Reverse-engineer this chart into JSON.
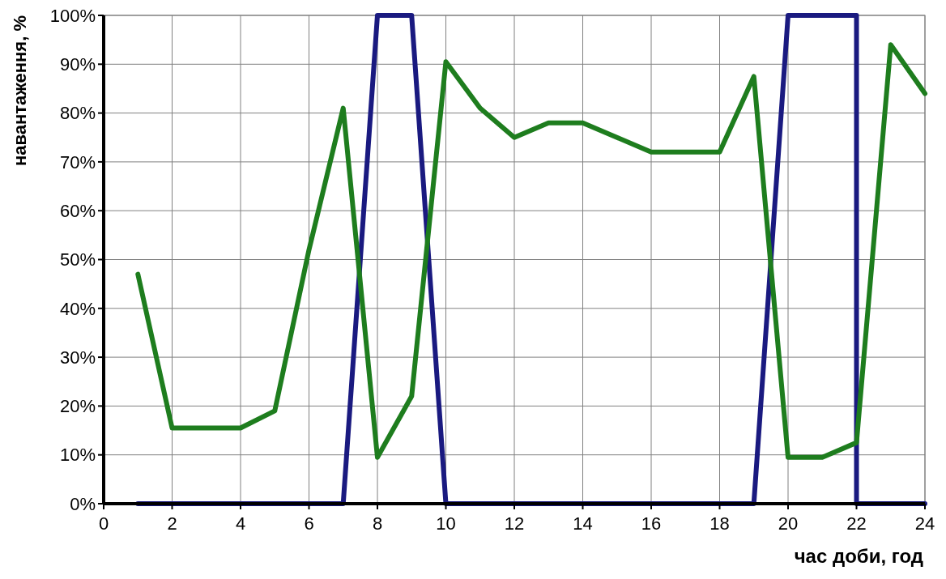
{
  "chart_data": {
    "type": "line",
    "xlabel": "час доби, год",
    "ylabel": "навантаження, %",
    "xlim": [
      0,
      24
    ],
    "xticks": [
      0,
      2,
      4,
      6,
      8,
      10,
      12,
      14,
      16,
      18,
      20,
      22,
      24
    ],
    "ylim": [
      0,
      100
    ],
    "yticks": [
      {
        "value": 0,
        "label": "0%"
      },
      {
        "value": 10,
        "label": "10%"
      },
      {
        "value": 20,
        "label": "20%"
      },
      {
        "value": 30,
        "label": "30%"
      },
      {
        "value": 40,
        "label": "40%"
      },
      {
        "value": 50,
        "label": "50%"
      },
      {
        "value": 60,
        "label": "60%"
      },
      {
        "value": 70,
        "label": "70%"
      },
      {
        "value": 80,
        "label": "80%"
      },
      {
        "value": 90,
        "label": "90%"
      },
      {
        "value": 100,
        "label": "100%"
      }
    ],
    "grid": true,
    "marker": "none",
    "line_style": "solid",
    "series": [
      {
        "color": "#1a1a80",
        "x": [
          1,
          2,
          3,
          4,
          5,
          6,
          7,
          8,
          9,
          10,
          11,
          12,
          13,
          14,
          15,
          16,
          17,
          18,
          19,
          20,
          21,
          22,
          22,
          23,
          24
        ],
        "values": [
          0,
          0,
          0,
          0,
          0,
          0,
          0,
          100,
          100,
          0,
          0,
          0,
          0,
          0,
          0,
          0,
          0,
          0,
          0,
          100,
          100,
          100,
          0,
          0,
          0
        ]
      },
      {
        "color": "#1e7d1e",
        "x": [
          1,
          2,
          3,
          4,
          5,
          6,
          7,
          8,
          9,
          10,
          11,
          12,
          13,
          14,
          15,
          16,
          17,
          18,
          19,
          20,
          21,
          22,
          23,
          24
        ],
        "values": [
          47,
          15.5,
          15.5,
          15.5,
          19,
          52,
          81,
          9.5,
          22,
          90.5,
          81,
          75,
          78,
          78,
          75,
          72,
          72,
          72,
          87.5,
          9.5,
          9.5,
          12.5,
          94,
          84
        ]
      }
    ]
  }
}
